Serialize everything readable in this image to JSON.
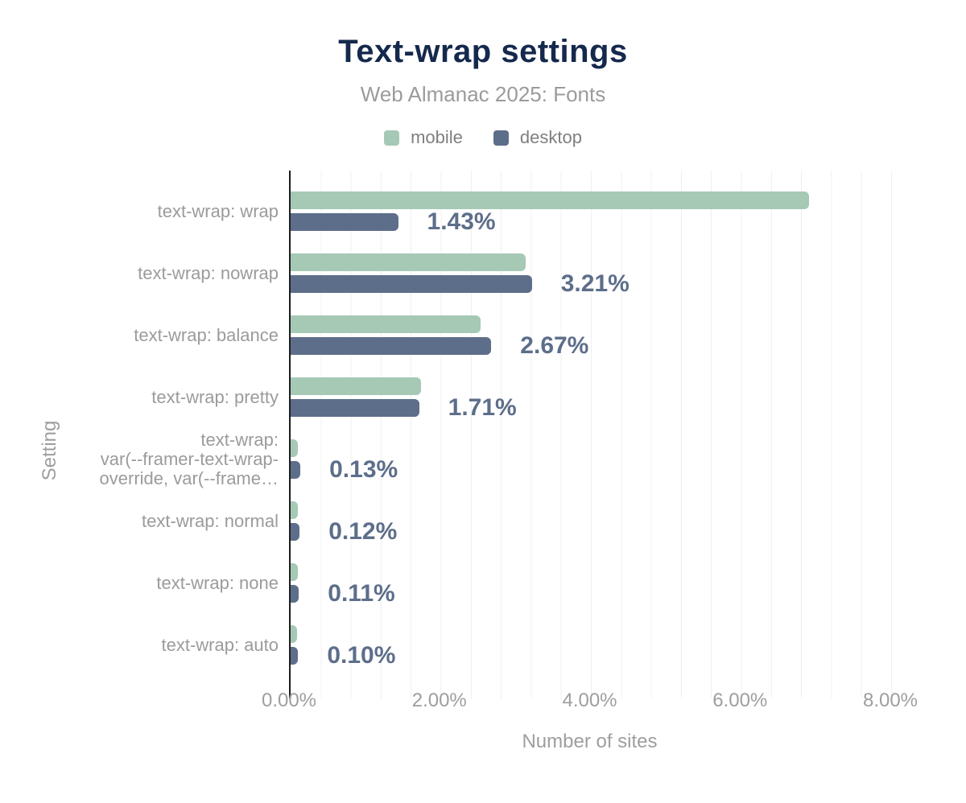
{
  "title": "Text-wrap settings",
  "subtitle": "Web Almanac 2025: Fonts",
  "ylabel": "Setting",
  "xlabel": "Number of sites",
  "legend": {
    "items": [
      {
        "label": "mobile",
        "color": "#a5c9b5"
      },
      {
        "label": "desktop",
        "color": "#5d6e8a"
      }
    ]
  },
  "colors": {
    "mobile": "#a5c9b5",
    "desktop": "#5d6e8a",
    "title": "#15294d",
    "value_label": "#5d6e8a",
    "axis_line": "#1f1f1f",
    "gridline": "#f0f0f0",
    "muted_text": "#9b9b9b"
  },
  "chart_data": {
    "type": "bar",
    "orientation": "horizontal",
    "title": "Text-wrap settings",
    "subtitle": "Web Almanac 2025: Fonts",
    "xlabel": "Number of sites",
    "ylabel": "Setting",
    "xlim": [
      0,
      8
    ],
    "xticks": [
      "0.00%",
      "2.00%",
      "4.00%",
      "6.00%",
      "8.00%"
    ],
    "grid": true,
    "legend_position": "top",
    "categories": [
      "text-wrap: wrap",
      "text-wrap: nowrap",
      "text-wrap: balance",
      "text-wrap: pretty",
      "text-wrap: var(--framer-text-wrap-override, var(--frame…",
      "text-wrap: normal",
      "text-wrap: none",
      "text-wrap: auto"
    ],
    "categories_display": [
      [
        "text-wrap: wrap"
      ],
      [
        "text-wrap: nowrap"
      ],
      [
        "text-wrap: balance"
      ],
      [
        "text-wrap: pretty"
      ],
      [
        "text-wrap:",
        "var(--framer-text-wrap-",
        "override, var(--frame…"
      ],
      [
        "text-wrap: normal"
      ],
      [
        "text-wrap: none"
      ],
      [
        "text-wrap: auto"
      ]
    ],
    "series": [
      {
        "name": "mobile",
        "color": "#a5c9b5",
        "values": [
          6.9,
          3.13,
          2.53,
          1.73,
          0.1,
          0.1,
          0.1,
          0.09
        ]
      },
      {
        "name": "desktop",
        "color": "#5d6e8a",
        "values": [
          1.43,
          3.21,
          2.67,
          1.71,
          0.13,
          0.12,
          0.11,
          0.1
        ]
      }
    ],
    "value_labels": [
      "1.43%",
      "3.21%",
      "2.67%",
      "1.71%",
      "0.13%",
      "0.12%",
      "0.11%",
      "0.10%"
    ]
  }
}
